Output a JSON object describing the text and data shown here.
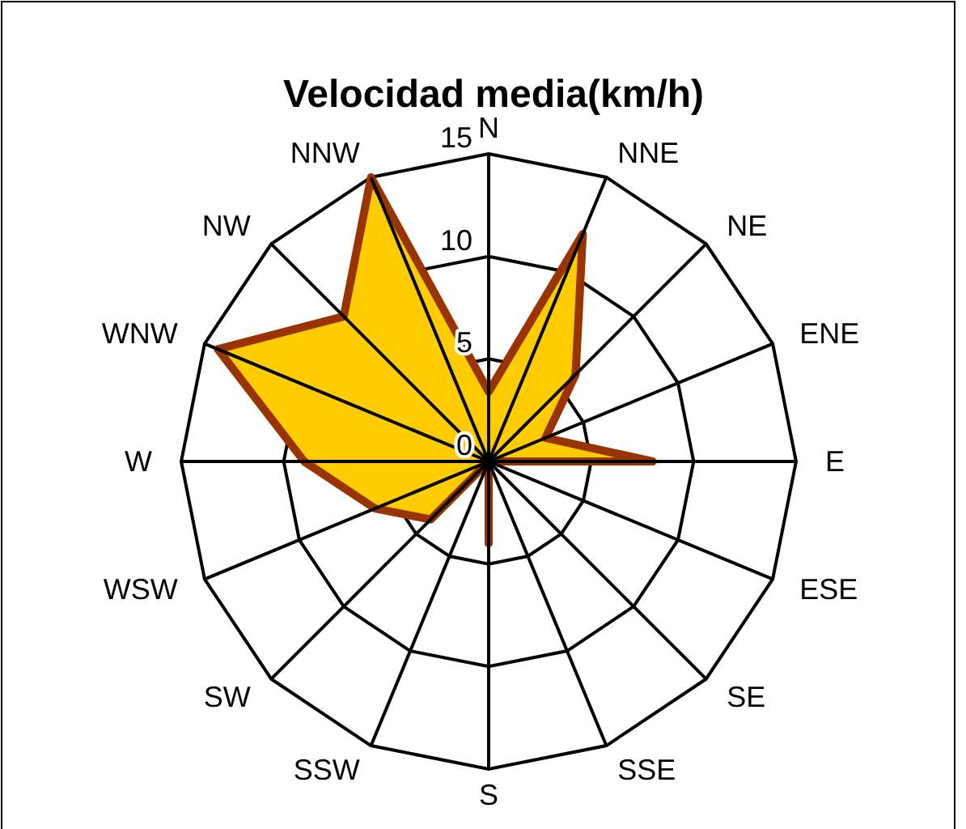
{
  "chart_data": {
    "type": "radar",
    "title": "Velocidad media(km/h)",
    "categories": [
      "N",
      "NNE",
      "NE",
      "ENE",
      "E",
      "ESE",
      "SE",
      "SSE",
      "S",
      "SSW",
      "SW",
      "WSW",
      "W",
      "WNW",
      "NW",
      "NNW"
    ],
    "series": [
      {
        "color": "#ffcc00",
        "values": [
          3.4,
          12,
          6,
          3,
          8,
          0,
          0,
          0,
          4,
          0,
          4,
          6,
          9,
          14.3,
          10,
          15
        ]
      }
    ],
    "ylim": [
      0,
      15
    ],
    "yticks": [
      0,
      5,
      10,
      15
    ],
    "grid": true
  }
}
